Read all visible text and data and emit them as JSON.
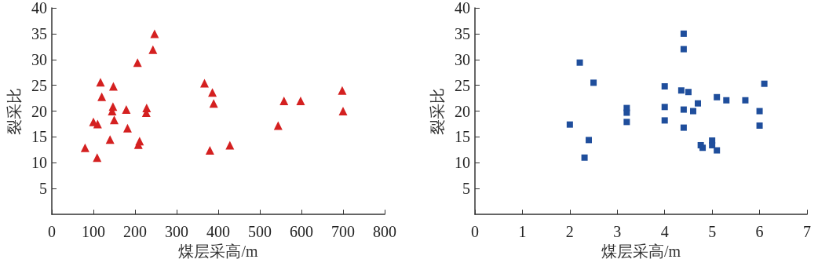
{
  "chart_data": [
    {
      "type": "scatter",
      "xlabel": "煤层采高/m",
      "ylabel": "裂采比",
      "marker": "triangle",
      "grid": false,
      "xlim": [
        0,
        800
      ],
      "xticks": [
        0,
        100,
        200,
        300,
        400,
        500,
        600,
        700,
        800
      ],
      "ylim": [
        0,
        40
      ],
      "yticks": [
        5,
        10,
        15,
        20,
        25,
        30,
        35,
        40
      ],
      "series": [
        {
          "color": "#d42020",
          "x": [
            80,
            100,
            110,
            109,
            117,
            120,
            140,
            148,
            147,
            145,
            150,
            179,
            182,
            206,
            208,
            211,
            228,
            227,
            243,
            247,
            367,
            380,
            386,
            389,
            428,
            544,
            558,
            598,
            698,
            700
          ],
          "values": [
            12.9,
            17.9,
            17.5,
            11.0,
            25.6,
            22.8,
            14.5,
            24.8,
            20.9,
            20.0,
            18.3,
            20.3,
            16.7,
            29.4,
            13.5,
            14.2,
            20.6,
            19.7,
            31.9,
            35.0,
            25.4,
            12.4,
            23.6,
            21.5,
            13.4,
            17.2,
            22.0,
            22.0,
            24.0,
            20.0
          ]
        }
      ]
    },
    {
      "type": "scatter",
      "xlabel": "煤层采高/m",
      "ylabel": "裂采比",
      "marker": "square",
      "grid": false,
      "xlim": [
        0,
        7
      ],
      "xticks": [
        0,
        1,
        2,
        3,
        4,
        5,
        6,
        7
      ],
      "ylim": [
        0,
        40
      ],
      "yticks": [
        5,
        10,
        15,
        20,
        25,
        30,
        35,
        40
      ],
      "series": [
        {
          "color": "#1f4e9c",
          "x": [
            2.0,
            2.21,
            2.31,
            2.4,
            2.5,
            3.2,
            3.2,
            3.2,
            4.0,
            4.0,
            4.0,
            4.35,
            4.4,
            4.4,
            4.4,
            4.4,
            4.5,
            4.6,
            4.7,
            4.76,
            4.8,
            5.0,
            5.0,
            5.1,
            5.1,
            5.3,
            5.7,
            6.0,
            6.0,
            6.1
          ],
          "values": [
            17.4,
            29.4,
            11.0,
            14.4,
            25.5,
            20.6,
            19.7,
            17.9,
            24.8,
            20.8,
            18.2,
            24.0,
            35.0,
            32.0,
            20.3,
            16.8,
            23.7,
            20.0,
            21.5,
            13.4,
            12.9,
            14.3,
            13.4,
            22.7,
            12.4,
            22.1,
            22.1,
            20.0,
            17.2,
            25.3
          ]
        }
      ]
    }
  ]
}
